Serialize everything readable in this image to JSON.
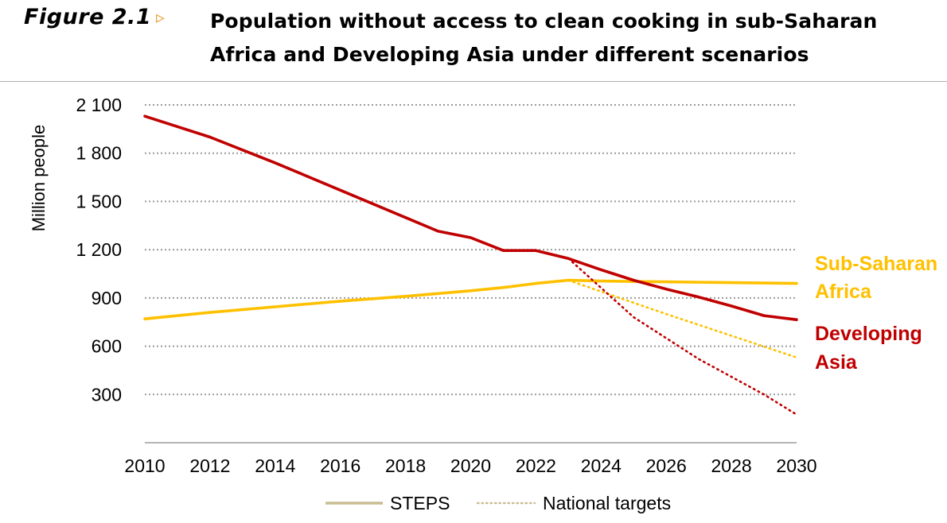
{
  "figure": {
    "label": "Figure 2.1",
    "arrow": "▹",
    "title": "Population without access to clean cooking in sub-Saharan Africa and Developing Asia under different scenarios",
    "accent_color": "#E8A23A"
  },
  "chart_data": {
    "type": "line",
    "ylabel": "Million people",
    "xlabel": "",
    "xlim": [
      2010,
      2030
    ],
    "ylim": [
      0,
      2100
    ],
    "x_ticks": [
      "2010",
      "2012",
      "2014",
      "2016",
      "2018",
      "2020",
      "2022",
      "2024",
      "2026",
      "2028",
      "2030"
    ],
    "y_ticks": [
      "2 100",
      "1 800",
      "1 500",
      "1 200",
      "900",
      "600",
      "300"
    ],
    "y_tick_values": [
      2100,
      1800,
      1500,
      1200,
      900,
      600,
      300
    ],
    "grid": "horizontal dotted",
    "legend_placement": "bottom",
    "legend": [
      {
        "label": "STEPS",
        "style": "solid",
        "color": "#C9BD93"
      },
      {
        "label": "National targets",
        "style": "dotted",
        "color": "#C9BD93"
      }
    ],
    "series": [
      {
        "name": "Sub-Saharan Africa",
        "scenario": "STEPS",
        "style": "solid",
        "color": "#FFC000",
        "x": [
          2010,
          2012,
          2014,
          2016,
          2018,
          2020,
          2021,
          2022,
          2023,
          2024,
          2026,
          2028,
          2030
        ],
        "y": [
          770,
          810,
          845,
          880,
          910,
          945,
          965,
          990,
          1010,
          1005,
          1000,
          995,
          990
        ]
      },
      {
        "name": "Sub-Saharan Africa",
        "scenario": "National targets",
        "style": "dotted",
        "color": "#FFC000",
        "x": [
          2023,
          2026,
          2028,
          2030
        ],
        "y": [
          1010,
          800,
          665,
          530
        ]
      },
      {
        "name": "Developing Asia",
        "scenario": "STEPS",
        "style": "solid",
        "color": "#C00000",
        "x": [
          2010,
          2012,
          2014,
          2016,
          2018,
          2019,
          2020,
          2021,
          2022,
          2023,
          2024,
          2025,
          2026,
          2027,
          2028,
          2029,
          2030
        ],
        "y": [
          2030,
          1900,
          1740,
          1570,
          1400,
          1315,
          1275,
          1195,
          1195,
          1145,
          1075,
          1010,
          955,
          905,
          850,
          790,
          765
        ]
      },
      {
        "name": "Developing Asia",
        "scenario": "National targets",
        "style": "dotted",
        "color": "#C00000",
        "x": [
          2023,
          2025,
          2027,
          2029,
          2030
        ],
        "y": [
          1145,
          780,
          520,
          300,
          175
        ]
      }
    ],
    "annotations": [
      {
        "text": "Sub-Saharan Africa",
        "lines": [
          "Sub-Saharan",
          "Africa"
        ],
        "color": "#FFC000"
      },
      {
        "text": "Developing Asia",
        "lines": [
          "Developing",
          "Asia"
        ],
        "color": "#C00000"
      }
    ]
  }
}
